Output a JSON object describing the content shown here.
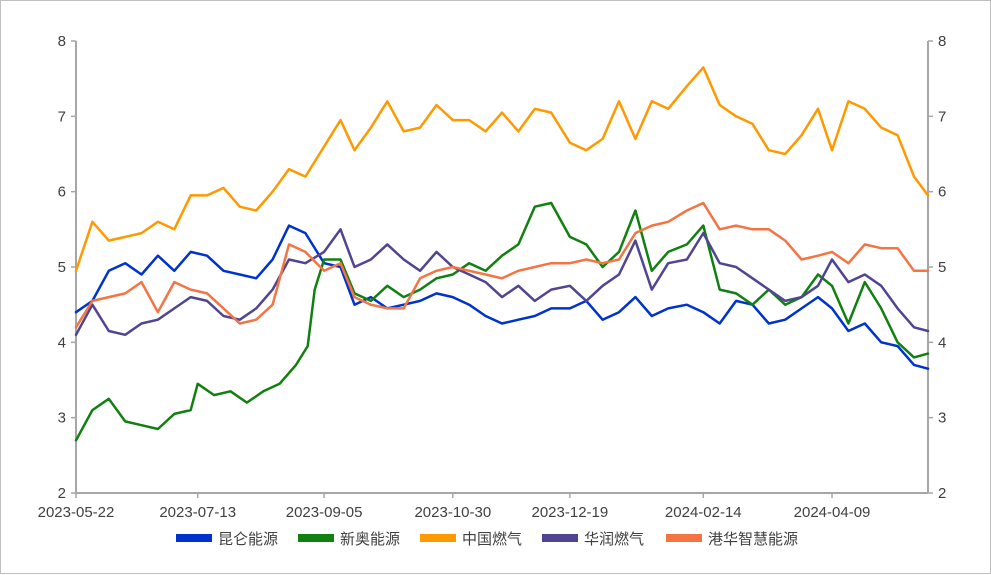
{
  "chart_data": {
    "type": "line",
    "title": "",
    "xlabel": "",
    "ylabel": "",
    "ylim": [
      2,
      8
    ],
    "yticks": [
      2,
      3,
      4,
      5,
      6,
      7,
      8
    ],
    "y2ticks": [
      2,
      3,
      4,
      5,
      6,
      7,
      8
    ],
    "xlim": [
      "2023-05-22",
      "2024-05-20"
    ],
    "xticks": [
      "2023-05-22",
      "2023-07-13",
      "2023-09-05",
      "2023-10-30",
      "2023-12-19",
      "2024-02-14",
      "2024-04-09"
    ],
    "grid": false,
    "legend_position": "bottom",
    "series": [
      {
        "name": "昆仑能源",
        "color": "#0033cc",
        "points": [
          [
            "2023-05-22",
            4.4
          ],
          [
            "2023-05-29",
            4.55
          ],
          [
            "2023-06-05",
            4.95
          ],
          [
            "2023-06-12",
            5.05
          ],
          [
            "2023-06-19",
            4.9
          ],
          [
            "2023-06-26",
            5.15
          ],
          [
            "2023-07-03",
            4.95
          ],
          [
            "2023-07-10",
            5.2
          ],
          [
            "2023-07-17",
            5.15
          ],
          [
            "2023-07-24",
            4.95
          ],
          [
            "2023-07-31",
            4.9
          ],
          [
            "2023-08-07",
            4.85
          ],
          [
            "2023-08-14",
            5.1
          ],
          [
            "2023-08-21",
            5.55
          ],
          [
            "2023-08-28",
            5.45
          ],
          [
            "2023-09-05",
            5.05
          ],
          [
            "2023-09-12",
            5.0
          ],
          [
            "2023-09-18",
            4.5
          ],
          [
            "2023-09-25",
            4.6
          ],
          [
            "2023-10-02",
            4.45
          ],
          [
            "2023-10-09",
            4.5
          ],
          [
            "2023-10-16",
            4.55
          ],
          [
            "2023-10-23",
            4.65
          ],
          [
            "2023-10-30",
            4.6
          ],
          [
            "2023-11-06",
            4.5
          ],
          [
            "2023-11-13",
            4.35
          ],
          [
            "2023-11-20",
            4.25
          ],
          [
            "2023-11-27",
            4.3
          ],
          [
            "2023-12-04",
            4.35
          ],
          [
            "2023-12-11",
            4.45
          ],
          [
            "2023-12-19",
            4.45
          ],
          [
            "2023-12-26",
            4.55
          ],
          [
            "2024-01-02",
            4.3
          ],
          [
            "2024-01-09",
            4.4
          ],
          [
            "2024-01-16",
            4.6
          ],
          [
            "2024-01-23",
            4.35
          ],
          [
            "2024-01-30",
            4.45
          ],
          [
            "2024-02-07",
            4.5
          ],
          [
            "2024-02-14",
            4.4
          ],
          [
            "2024-02-21",
            4.25
          ],
          [
            "2024-02-28",
            4.55
          ],
          [
            "2024-03-06",
            4.5
          ],
          [
            "2024-03-13",
            4.25
          ],
          [
            "2024-03-20",
            4.3
          ],
          [
            "2024-03-27",
            4.45
          ],
          [
            "2024-04-03",
            4.6
          ],
          [
            "2024-04-09",
            4.45
          ],
          [
            "2024-04-16",
            4.15
          ],
          [
            "2024-04-23",
            4.25
          ],
          [
            "2024-04-30",
            4.0
          ],
          [
            "2024-05-07",
            3.95
          ],
          [
            "2024-05-14",
            3.7
          ],
          [
            "2024-05-20",
            3.65
          ]
        ]
      },
      {
        "name": "新奥能源",
        "color": "#108010",
        "points": [
          [
            "2023-05-22",
            2.7
          ],
          [
            "2023-05-29",
            3.1
          ],
          [
            "2023-06-05",
            3.25
          ],
          [
            "2023-06-12",
            2.95
          ],
          [
            "2023-06-19",
            2.9
          ],
          [
            "2023-06-26",
            2.85
          ],
          [
            "2023-07-03",
            3.05
          ],
          [
            "2023-07-10",
            3.1
          ],
          [
            "2023-07-13",
            3.45
          ],
          [
            "2023-07-20",
            3.3
          ],
          [
            "2023-07-27",
            3.35
          ],
          [
            "2023-08-03",
            3.2
          ],
          [
            "2023-08-10",
            3.35
          ],
          [
            "2023-08-17",
            3.45
          ],
          [
            "2023-08-24",
            3.7
          ],
          [
            "2023-08-29",
            3.95
          ],
          [
            "2023-09-01",
            4.7
          ],
          [
            "2023-09-05",
            5.1
          ],
          [
            "2023-09-12",
            5.1
          ],
          [
            "2023-09-18",
            4.65
          ],
          [
            "2023-09-25",
            4.55
          ],
          [
            "2023-10-02",
            4.75
          ],
          [
            "2023-10-09",
            4.6
          ],
          [
            "2023-10-16",
            4.7
          ],
          [
            "2023-10-23",
            4.85
          ],
          [
            "2023-10-30",
            4.9
          ],
          [
            "2023-11-06",
            5.05
          ],
          [
            "2023-11-13",
            4.95
          ],
          [
            "2023-11-20",
            5.15
          ],
          [
            "2023-11-27",
            5.3
          ],
          [
            "2023-12-04",
            5.8
          ],
          [
            "2023-12-11",
            5.85
          ],
          [
            "2023-12-19",
            5.4
          ],
          [
            "2023-12-26",
            5.3
          ],
          [
            "2024-01-02",
            5.0
          ],
          [
            "2024-01-09",
            5.2
          ],
          [
            "2024-01-16",
            5.75
          ],
          [
            "2024-01-23",
            4.95
          ],
          [
            "2024-01-30",
            5.2
          ],
          [
            "2024-02-07",
            5.3
          ],
          [
            "2024-02-14",
            5.55
          ],
          [
            "2024-02-21",
            4.7
          ],
          [
            "2024-02-28",
            4.65
          ],
          [
            "2024-03-06",
            4.5
          ],
          [
            "2024-03-13",
            4.7
          ],
          [
            "2024-03-20",
            4.5
          ],
          [
            "2024-03-27",
            4.6
          ],
          [
            "2024-04-03",
            4.9
          ],
          [
            "2024-04-09",
            4.75
          ],
          [
            "2024-04-16",
            4.25
          ],
          [
            "2024-04-23",
            4.8
          ],
          [
            "2024-04-30",
            4.45
          ],
          [
            "2024-05-07",
            4.0
          ],
          [
            "2024-05-14",
            3.8
          ],
          [
            "2024-05-20",
            3.85
          ]
        ]
      },
      {
        "name": "中国燃气",
        "color": "#ff9900",
        "points": [
          [
            "2023-05-22",
            4.95
          ],
          [
            "2023-05-29",
            5.6
          ],
          [
            "2023-06-05",
            5.35
          ],
          [
            "2023-06-12",
            5.4
          ],
          [
            "2023-06-19",
            5.45
          ],
          [
            "2023-06-26",
            5.6
          ],
          [
            "2023-07-03",
            5.5
          ],
          [
            "2023-07-10",
            5.95
          ],
          [
            "2023-07-17",
            5.95
          ],
          [
            "2023-07-24",
            6.05
          ],
          [
            "2023-07-31",
            5.8
          ],
          [
            "2023-08-07",
            5.75
          ],
          [
            "2023-08-14",
            6.0
          ],
          [
            "2023-08-21",
            6.3
          ],
          [
            "2023-08-28",
            6.2
          ],
          [
            "2023-09-05",
            6.6
          ],
          [
            "2023-09-12",
            6.95
          ],
          [
            "2023-09-18",
            6.55
          ],
          [
            "2023-09-25",
            6.85
          ],
          [
            "2023-10-02",
            7.2
          ],
          [
            "2023-10-09",
            6.8
          ],
          [
            "2023-10-16",
            6.85
          ],
          [
            "2023-10-23",
            7.15
          ],
          [
            "2023-10-30",
            6.95
          ],
          [
            "2023-11-06",
            6.95
          ],
          [
            "2023-11-13",
            6.8
          ],
          [
            "2023-11-20",
            7.05
          ],
          [
            "2023-11-27",
            6.8
          ],
          [
            "2023-12-04",
            7.1
          ],
          [
            "2023-12-11",
            7.05
          ],
          [
            "2023-12-19",
            6.65
          ],
          [
            "2023-12-26",
            6.55
          ],
          [
            "2024-01-02",
            6.7
          ],
          [
            "2024-01-09",
            7.2
          ],
          [
            "2024-01-16",
            6.7
          ],
          [
            "2024-01-23",
            7.2
          ],
          [
            "2024-01-30",
            7.1
          ],
          [
            "2024-02-07",
            7.4
          ],
          [
            "2024-02-14",
            7.65
          ],
          [
            "2024-02-21",
            7.15
          ],
          [
            "2024-02-28",
            7.0
          ],
          [
            "2024-03-06",
            6.9
          ],
          [
            "2024-03-13",
            6.55
          ],
          [
            "2024-03-20",
            6.5
          ],
          [
            "2024-03-27",
            6.75
          ],
          [
            "2024-04-03",
            7.1
          ],
          [
            "2024-04-09",
            6.55
          ],
          [
            "2024-04-16",
            7.2
          ],
          [
            "2024-04-23",
            7.1
          ],
          [
            "2024-04-30",
            6.85
          ],
          [
            "2024-05-07",
            6.75
          ],
          [
            "2024-05-14",
            6.2
          ],
          [
            "2024-05-20",
            5.95
          ]
        ]
      },
      {
        "name": "华润燃气",
        "color": "#4f4592",
        "points": [
          [
            "2023-05-22",
            4.1
          ],
          [
            "2023-05-29",
            4.5
          ],
          [
            "2023-06-05",
            4.15
          ],
          [
            "2023-06-12",
            4.1
          ],
          [
            "2023-06-19",
            4.25
          ],
          [
            "2023-06-26",
            4.3
          ],
          [
            "2023-07-03",
            4.45
          ],
          [
            "2023-07-10",
            4.6
          ],
          [
            "2023-07-17",
            4.55
          ],
          [
            "2023-07-24",
            4.35
          ],
          [
            "2023-07-31",
            4.3
          ],
          [
            "2023-08-07",
            4.45
          ],
          [
            "2023-08-14",
            4.7
          ],
          [
            "2023-08-21",
            5.1
          ],
          [
            "2023-08-28",
            5.05
          ],
          [
            "2023-09-05",
            5.2
          ],
          [
            "2023-09-12",
            5.5
          ],
          [
            "2023-09-18",
            5.0
          ],
          [
            "2023-09-25",
            5.1
          ],
          [
            "2023-10-02",
            5.3
          ],
          [
            "2023-10-09",
            5.1
          ],
          [
            "2023-10-16",
            4.95
          ],
          [
            "2023-10-23",
            5.2
          ],
          [
            "2023-10-30",
            5.0
          ],
          [
            "2023-11-06",
            4.9
          ],
          [
            "2023-11-13",
            4.8
          ],
          [
            "2023-11-20",
            4.6
          ],
          [
            "2023-11-27",
            4.75
          ],
          [
            "2023-12-04",
            4.55
          ],
          [
            "2023-12-11",
            4.7
          ],
          [
            "2023-12-19",
            4.75
          ],
          [
            "2023-12-26",
            4.55
          ],
          [
            "2024-01-02",
            4.75
          ],
          [
            "2024-01-09",
            4.9
          ],
          [
            "2024-01-16",
            5.35
          ],
          [
            "2024-01-23",
            4.7
          ],
          [
            "2024-01-30",
            5.05
          ],
          [
            "2024-02-07",
            5.1
          ],
          [
            "2024-02-14",
            5.45
          ],
          [
            "2024-02-21",
            5.05
          ],
          [
            "2024-02-28",
            5.0
          ],
          [
            "2024-03-06",
            4.85
          ],
          [
            "2024-03-13",
            4.7
          ],
          [
            "2024-03-20",
            4.55
          ],
          [
            "2024-03-27",
            4.6
          ],
          [
            "2024-04-03",
            4.75
          ],
          [
            "2024-04-09",
            5.1
          ],
          [
            "2024-04-16",
            4.8
          ],
          [
            "2024-04-23",
            4.9
          ],
          [
            "2024-04-30",
            4.75
          ],
          [
            "2024-05-07",
            4.45
          ],
          [
            "2024-05-14",
            4.2
          ],
          [
            "2024-05-20",
            4.15
          ]
        ]
      },
      {
        "name": "港华智慧能源",
        "color": "#f47443",
        "points": [
          [
            "2023-05-22",
            4.2
          ],
          [
            "2023-05-29",
            4.55
          ],
          [
            "2023-06-05",
            4.6
          ],
          [
            "2023-06-12",
            4.65
          ],
          [
            "2023-06-19",
            4.8
          ],
          [
            "2023-06-26",
            4.4
          ],
          [
            "2023-07-03",
            4.8
          ],
          [
            "2023-07-10",
            4.7
          ],
          [
            "2023-07-17",
            4.65
          ],
          [
            "2023-07-24",
            4.45
          ],
          [
            "2023-07-31",
            4.25
          ],
          [
            "2023-08-07",
            4.3
          ],
          [
            "2023-08-14",
            4.5
          ],
          [
            "2023-08-21",
            5.3
          ],
          [
            "2023-08-28",
            5.2
          ],
          [
            "2023-09-05",
            4.95
          ],
          [
            "2023-09-12",
            5.05
          ],
          [
            "2023-09-18",
            4.6
          ],
          [
            "2023-09-25",
            4.5
          ],
          [
            "2023-10-02",
            4.45
          ],
          [
            "2023-10-09",
            4.45
          ],
          [
            "2023-10-16",
            4.85
          ],
          [
            "2023-10-23",
            4.95
          ],
          [
            "2023-10-30",
            5.0
          ],
          [
            "2023-11-06",
            4.95
          ],
          [
            "2023-11-13",
            4.9
          ],
          [
            "2023-11-20",
            4.85
          ],
          [
            "2023-11-27",
            4.95
          ],
          [
            "2023-12-04",
            5.0
          ],
          [
            "2023-12-11",
            5.05
          ],
          [
            "2023-12-19",
            5.05
          ],
          [
            "2023-12-26",
            5.1
          ],
          [
            "2024-01-02",
            5.05
          ],
          [
            "2024-01-09",
            5.1
          ],
          [
            "2024-01-16",
            5.45
          ],
          [
            "2024-01-23",
            5.55
          ],
          [
            "2024-01-30",
            5.6
          ],
          [
            "2024-02-07",
            5.75
          ],
          [
            "2024-02-14",
            5.85
          ],
          [
            "2024-02-21",
            5.5
          ],
          [
            "2024-02-28",
            5.55
          ],
          [
            "2024-03-06",
            5.5
          ],
          [
            "2024-03-13",
            5.5
          ],
          [
            "2024-03-20",
            5.35
          ],
          [
            "2024-03-27",
            5.1
          ],
          [
            "2024-04-03",
            5.15
          ],
          [
            "2024-04-09",
            5.2
          ],
          [
            "2024-04-16",
            5.05
          ],
          [
            "2024-04-23",
            5.3
          ],
          [
            "2024-04-30",
            5.25
          ],
          [
            "2024-05-07",
            5.25
          ],
          [
            "2024-05-14",
            4.95
          ],
          [
            "2024-05-20",
            4.95
          ]
        ]
      }
    ]
  }
}
